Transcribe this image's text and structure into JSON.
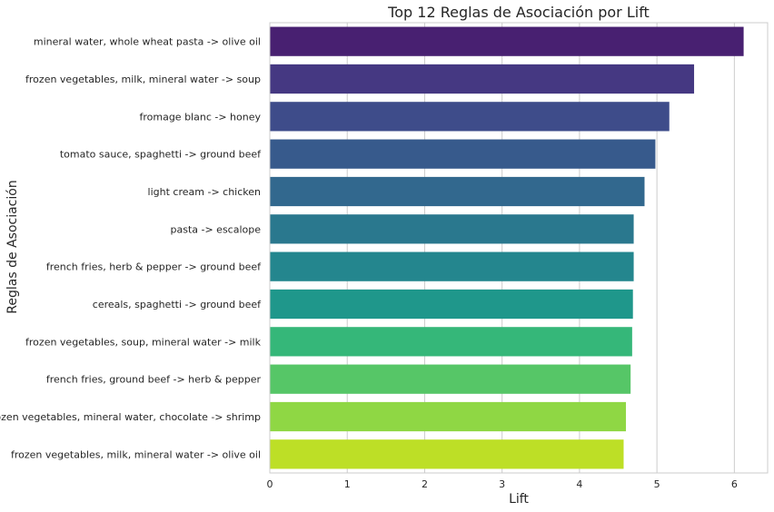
{
  "chart_data": {
    "type": "bar",
    "orientation": "horizontal",
    "title": "Top 12 Reglas de Asociación por Lift",
    "xlabel": "Lift",
    "ylabel": "Reglas de Asociación",
    "xlim": [
      0,
      6.43
    ],
    "xticks": [
      "0",
      "1",
      "2",
      "3",
      "4",
      "5",
      "6"
    ],
    "grid": "vertical",
    "categories": [
      "mineral water, whole wheat pasta -> olive oil",
      "frozen vegetables, milk, mineral water -> soup",
      "fromage blanc -> honey",
      "tomato sauce, spaghetti -> ground beef",
      "light cream -> chicken",
      "pasta -> escalope",
      "french fries, herb & pepper -> ground beef",
      "cereals, spaghetti -> ground beef",
      "frozen vegetables, soup, mineral water -> milk",
      "french fries, ground beef -> herb & pepper",
      "frozen vegetables, mineral water, chocolate -> shrimp",
      "frozen vegetables, milk, mineral water -> olive oil"
    ],
    "values": [
      6.12,
      5.48,
      5.16,
      4.98,
      4.84,
      4.7,
      4.7,
      4.69,
      4.68,
      4.66,
      4.6,
      4.57
    ],
    "colors": [
      "#482071",
      "#453882",
      "#3e4c8a",
      "#375a8c",
      "#32688e",
      "#2a788e",
      "#24868e",
      "#1f978b",
      "#35b779",
      "#56c667",
      "#8fd744",
      "#bddf26"
    ]
  }
}
